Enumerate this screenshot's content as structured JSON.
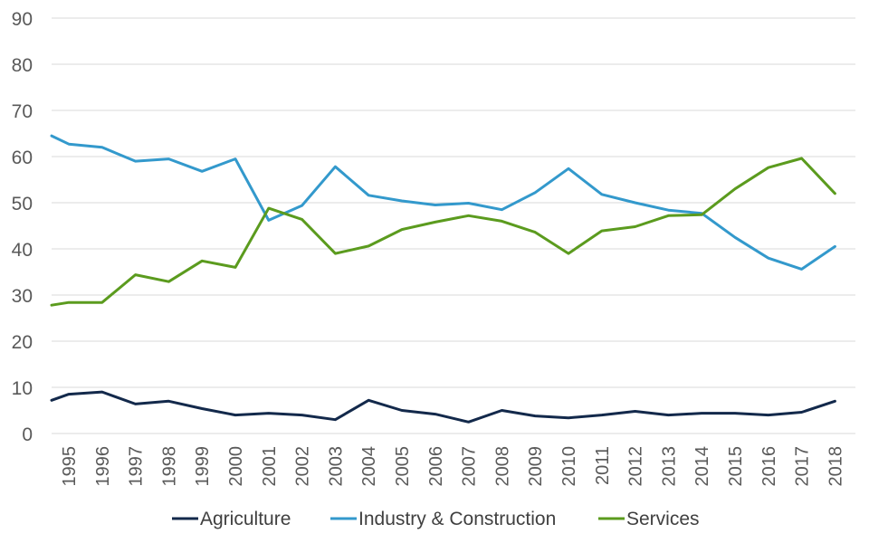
{
  "chart_data": {
    "type": "line",
    "title": "",
    "xlabel": "",
    "ylabel": "",
    "ylim": [
      0,
      90
    ],
    "y_ticks": [
      0,
      10,
      20,
      30,
      40,
      50,
      60,
      70,
      80,
      90
    ],
    "grid": "horizontal",
    "legend_position": "bottom",
    "categories": [
      "1995",
      "1996",
      "1997",
      "1998",
      "1999",
      "2000",
      "2001",
      "2002",
      "2003",
      "2004",
      "2005",
      "2006",
      "2007",
      "2008",
      "2009",
      "2010",
      "2011",
      "2012",
      "2013",
      "2014",
      "2015",
      "2016",
      "2017",
      "2018"
    ],
    "series": [
      {
        "name": "Agriculture",
        "color": "#13294B",
        "values": [
          8.5,
          9.0,
          6.4,
          7.0,
          5.4,
          4.0,
          4.4,
          4.0,
          3.0,
          7.2,
          5.0,
          4.2,
          2.5,
          5.0,
          3.8,
          3.4,
          4.0,
          4.8,
          4.0,
          4.4,
          4.4,
          4.0,
          4.6,
          7.0
        ],
        "start_value": 7.2
      },
      {
        "name": "Industry & Construction",
        "color": "#3399CC",
        "values": [
          62.7,
          62.0,
          59.0,
          59.5,
          56.8,
          59.5,
          46.2,
          49.4,
          57.8,
          51.6,
          50.4,
          49.5,
          49.9,
          48.5,
          52.2,
          57.4,
          51.8,
          50.0,
          48.4,
          47.7,
          42.5,
          38.0,
          35.6,
          40.5
        ],
        "start_value": 64.5
      },
      {
        "name": "Services",
        "color": "#5B9B1E",
        "values": [
          28.4,
          28.4,
          34.4,
          32.9,
          37.4,
          36.0,
          48.8,
          46.4,
          39.0,
          40.6,
          44.2,
          45.8,
          47.2,
          46.0,
          43.6,
          39.0,
          43.9,
          44.8,
          47.2,
          47.4,
          53.0,
          57.6,
          59.6,
          52.0
        ],
        "start_value": 27.8
      }
    ]
  }
}
